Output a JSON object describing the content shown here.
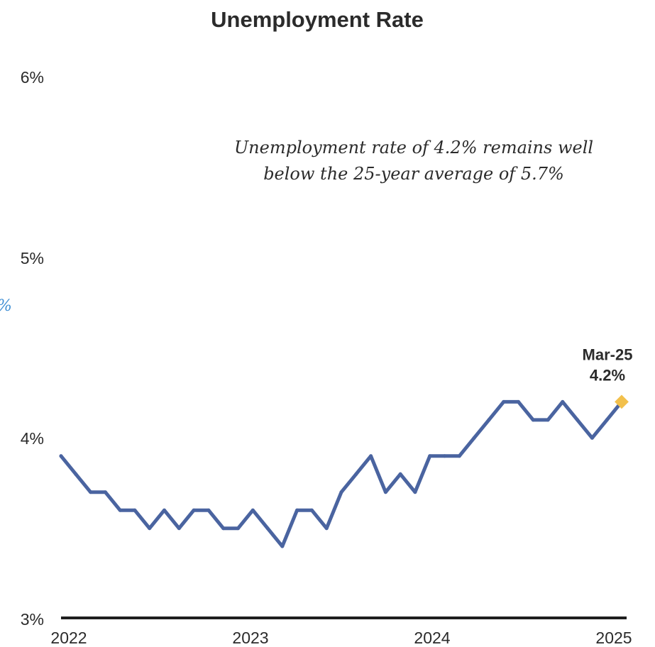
{
  "chart_data": {
    "type": "line",
    "title": "Unemployment Rate",
    "xlabel": "",
    "ylabel": "",
    "ylim": [
      3,
      6
    ],
    "y_ticks": [
      {
        "value": 6,
        "label": "6%"
      },
      {
        "value": 5,
        "label": "5%"
      },
      {
        "value": 4,
        "label": "4%"
      },
      {
        "value": 3,
        "label": "3%"
      }
    ],
    "x_ticks": [
      {
        "value": "2022-01",
        "label": "2022"
      },
      {
        "value": "2023-01",
        "label": "2023"
      },
      {
        "value": "2024-01",
        "label": "2024"
      },
      {
        "value": "2025-01",
        "label": "2025"
      }
    ],
    "xlim": [
      "2022-01",
      "2025-03"
    ],
    "grid": false,
    "series": [
      {
        "color": "#4a64a0",
        "x": [
          "2022-01",
          "2022-02",
          "2022-03",
          "2022-04",
          "2022-05",
          "2022-06",
          "2022-07",
          "2022-08",
          "2022-09",
          "2022-10",
          "2022-11",
          "2022-12",
          "2023-01",
          "2023-02",
          "2023-03",
          "2023-04",
          "2023-05",
          "2023-06",
          "2023-07",
          "2023-08",
          "2023-09",
          "2023-10",
          "2023-11",
          "2023-12",
          "2024-01",
          "2024-02",
          "2024-03",
          "2024-04",
          "2024-05",
          "2024-06",
          "2024-07",
          "2024-08",
          "2024-09",
          "2024-10",
          "2024-11",
          "2024-12",
          "2025-01",
          "2025-02",
          "2025-03"
        ],
        "values": [
          3.9,
          3.8,
          3.7,
          3.7,
          3.6,
          3.6,
          3.5,
          3.6,
          3.5,
          3.6,
          3.6,
          3.5,
          3.5,
          3.6,
          3.5,
          3.4,
          3.6,
          3.6,
          3.5,
          3.7,
          3.8,
          3.9,
          3.7,
          3.8,
          3.7,
          3.9,
          3.9,
          3.9,
          4.0,
          4.1,
          4.2,
          4.2,
          4.1,
          4.1,
          4.2,
          4.1,
          4.0,
          4.1,
          4.2
        ]
      }
    ],
    "end_marker": {
      "x": "2025-03",
      "value": 4.2,
      "color": "#f2c04c",
      "label_date": "Mar-25",
      "label_value": "4.2%"
    },
    "annotation": {
      "lines": [
        "Unemployment rate of 4.2% remains well",
        "below the 25-year average of 5.7%"
      ]
    },
    "cut_off_label": {
      "text": "%",
      "color": "#3f8fd4"
    },
    "axis_color": "#1f1f1f"
  }
}
